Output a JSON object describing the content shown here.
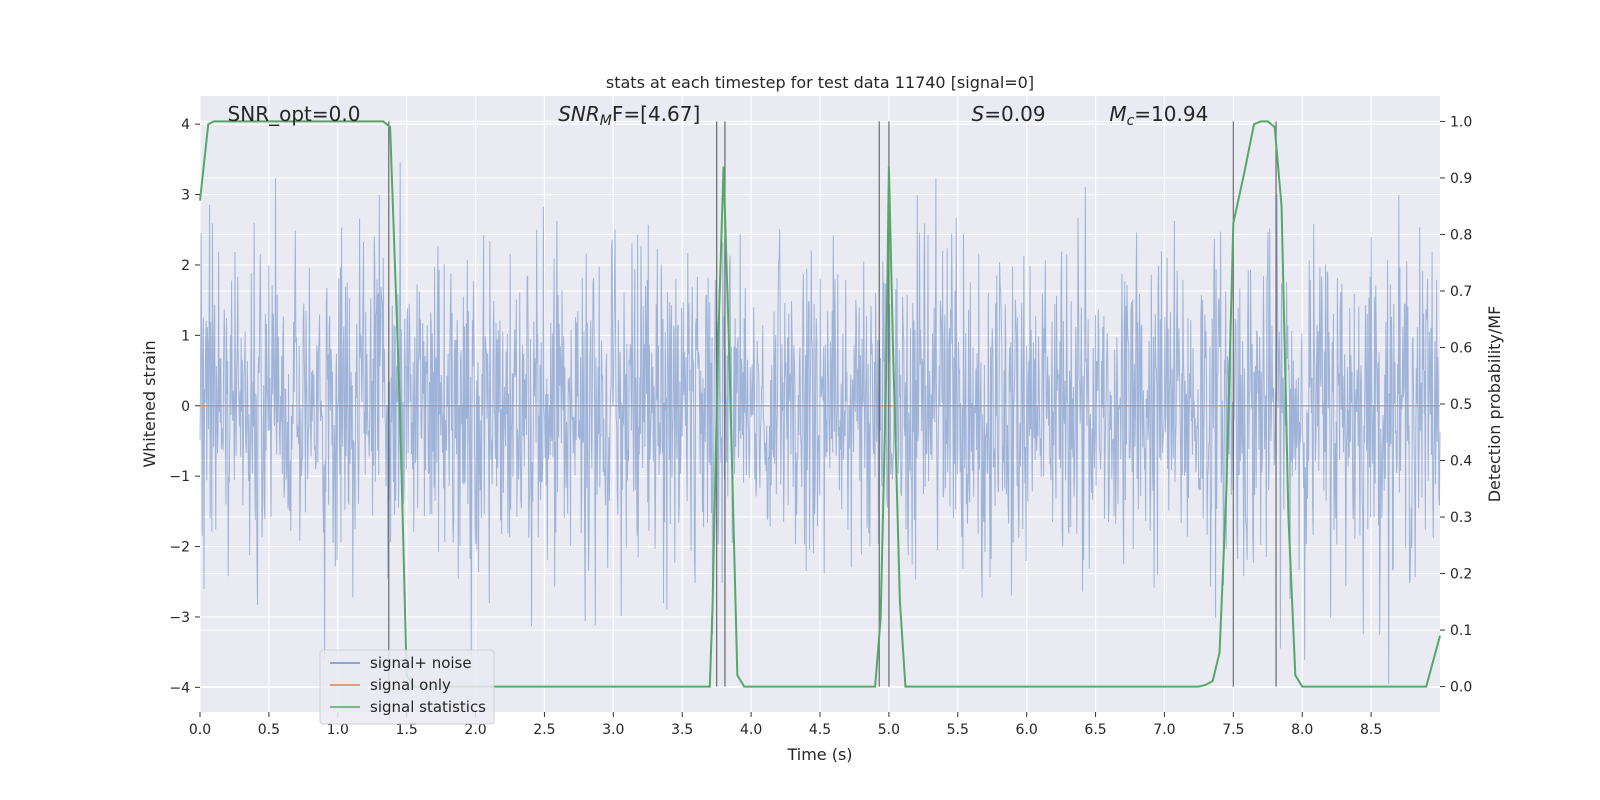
{
  "chart_data": {
    "type": "line",
    "title": "stats at each timestep for test data 11740 [signal=0]",
    "xlabel": "Time (s)",
    "ylabel": "Whitened strain",
    "y2label": "Detection probability/MF",
    "xlim": [
      0.0,
      9.0
    ],
    "ylim": [
      -4.35,
      4.4
    ],
    "y2lim": [
      -0.045,
      1.045
    ],
    "x_ticks": [
      0.0,
      0.5,
      1.0,
      1.5,
      2.0,
      2.5,
      3.0,
      3.5,
      4.0,
      4.5,
      5.0,
      5.5,
      6.0,
      6.5,
      7.0,
      7.5,
      8.0,
      8.5
    ],
    "x_tick_labels": [
      "0.0",
      "0.5",
      "1.0",
      "1.5",
      "2.0",
      "2.5",
      "3.0",
      "3.5",
      "4.0",
      "4.5",
      "5.0",
      "5.5",
      "6.0",
      "6.5",
      "7.0",
      "7.5",
      "8.0",
      "8.5"
    ],
    "y_ticks": [
      4,
      3,
      2,
      1,
      0,
      -1,
      -2,
      -3,
      -4
    ],
    "y_tick_labels": [
      "4",
      "3",
      "2",
      "1",
      "0",
      "−1",
      "−2",
      "−3",
      "−4"
    ],
    "y2_ticks": [
      1.0,
      0.9,
      0.8,
      0.7,
      0.6,
      0.5,
      0.4,
      0.3,
      0.2,
      0.1,
      0.0
    ],
    "y2_tick_labels": [
      "1.0",
      "0.9",
      "0.8",
      "0.7",
      "0.6",
      "0.5",
      "0.4",
      "0.3",
      "0.2",
      "0.1",
      "0.0"
    ],
    "grid": true,
    "legend_position": "lower-left",
    "series": [
      {
        "name": "signal+ noise",
        "color": "#6d8dc6",
        "kind": "noise-band",
        "n_points": 2200,
        "duration_s": 9.0,
        "seed": 11740
      },
      {
        "name": "signal only",
        "color": "#dd8452",
        "kind": "line",
        "x": [
          0.0,
          9.0
        ],
        "y": [
          0.0,
          0.0
        ]
      },
      {
        "name": "signal statistics",
        "color": "#55a868",
        "axis": "right",
        "x": [
          0.0,
          0.06,
          0.1,
          0.2,
          1.33,
          1.38,
          1.45,
          1.5,
          1.55,
          1.6,
          3.7,
          3.72,
          3.76,
          3.8,
          3.84,
          3.9,
          3.95,
          4.9,
          4.94,
          4.98,
          5.0,
          5.03,
          5.08,
          5.12,
          7.25,
          7.3,
          7.35,
          7.4,
          7.45,
          7.5,
          7.58,
          7.65,
          7.7,
          7.75,
          7.8,
          7.85,
          7.9,
          7.95,
          8.0,
          8.9,
          9.0
        ],
        "y": [
          0.86,
          0.995,
          1.0,
          1.0,
          1.0,
          0.99,
          0.5,
          0.02,
          0.0,
          0.0,
          0.0,
          0.14,
          0.6,
          0.92,
          0.6,
          0.02,
          0.0,
          0.0,
          0.12,
          0.55,
          0.92,
          0.6,
          0.15,
          0.0,
          0.0,
          0.003,
          0.01,
          0.06,
          0.35,
          0.82,
          0.91,
          0.995,
          1.0,
          1.0,
          0.99,
          0.85,
          0.3,
          0.02,
          0.0,
          0.0,
          0.09
        ]
      }
    ],
    "vertical_markers": [
      1.37,
      3.75,
      3.81,
      4.93,
      5.0,
      7.5,
      7.81
    ],
    "annotations": [
      {
        "id": "snr_opt",
        "text": "SNR_opt=0.0",
        "x": 0.2
      },
      {
        "id": "snr_mf",
        "main": "SNR",
        "sub": "M",
        "rest": "F=[4.67]",
        "x": 2.6
      },
      {
        "id": "s",
        "main": "S",
        "rest": "=0.09",
        "x": 5.6
      },
      {
        "id": "mc",
        "main": "M",
        "sub": "c",
        "rest": "=10.94",
        "x": 6.6
      }
    ]
  }
}
